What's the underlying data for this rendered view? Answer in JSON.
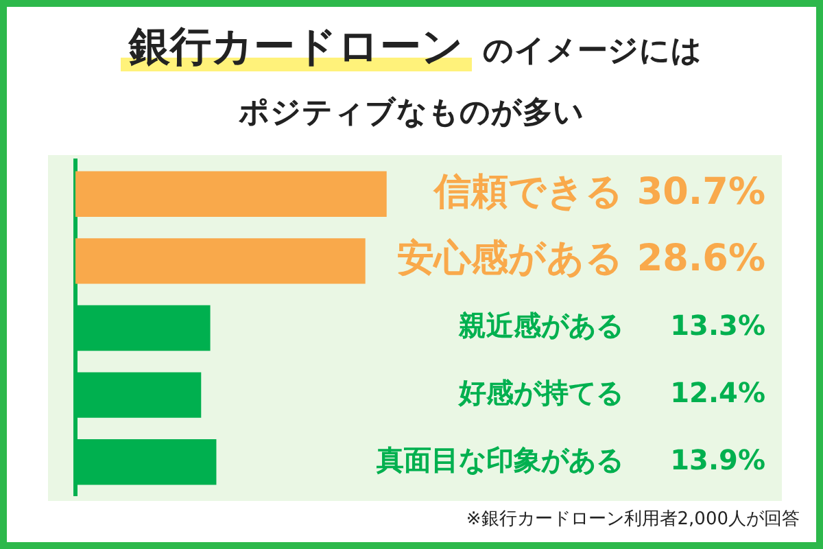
{
  "chart_data": {
    "type": "bar",
    "orientation": "horizontal",
    "title": "銀行カードローン のイメージには",
    "subtitle": "ポジティブなものが多い",
    "categories": [
      "信頼できる",
      "安心感がある",
      "親近感がある",
      "好感が持てる",
      "真面目な印象がある"
    ],
    "values": [
      30.7,
      28.6,
      13.3,
      12.4,
      13.9
    ],
    "value_labels": [
      "30.7%",
      "28.6%",
      "13.3%",
      "12.4%",
      "13.9%"
    ],
    "colors": [
      "#f9a94b",
      "#f9a94b",
      "#00b04f",
      "#00b04f",
      "#00b04f"
    ],
    "tick_labels": false,
    "legend": false,
    "annotations": [
      "※銀行カードローン利用者2,000人が回答"
    ]
  }
}
